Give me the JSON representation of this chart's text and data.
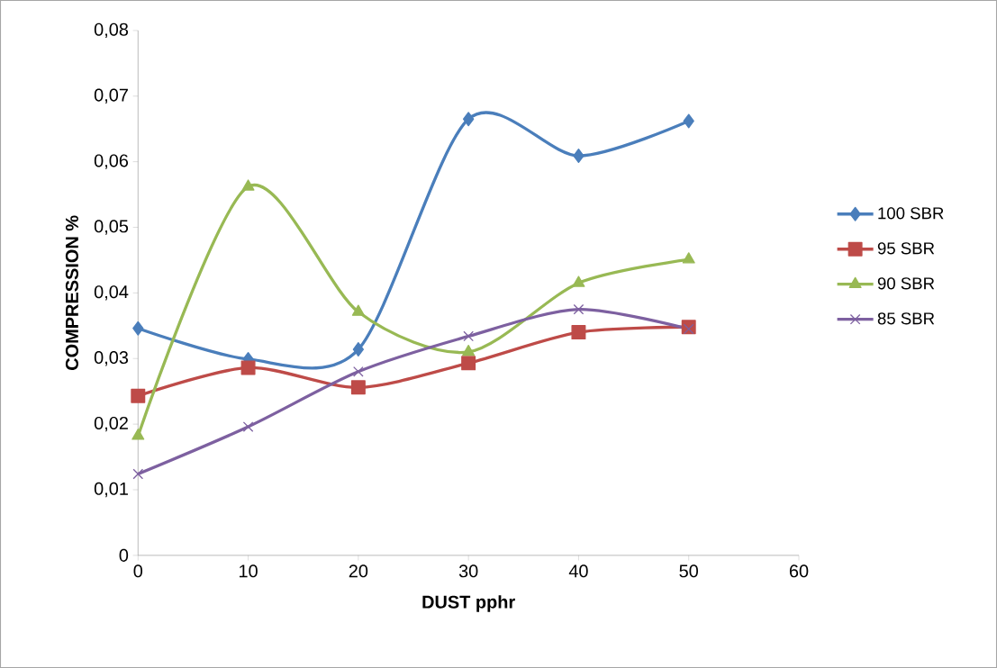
{
  "chart_data": {
    "type": "line",
    "xlabel": "DUST pphr",
    "ylabel": "COMPRESSION %",
    "x": [
      0,
      10,
      20,
      30,
      40,
      50
    ],
    "series": [
      {
        "name": "100 SBR",
        "color": "#4a7ebb",
        "marker": "diamond",
        "values": [
          0.0346,
          0.0299,
          0.0314,
          0.0665,
          0.0609,
          0.0662
        ]
      },
      {
        "name": "95 SBR",
        "color": "#be4b48",
        "marker": "square",
        "values": [
          0.0243,
          0.0286,
          0.0256,
          0.0293,
          0.034,
          0.0348
        ]
      },
      {
        "name": "90 SBR",
        "color": "#98b954",
        "marker": "triangle",
        "values": [
          0.0182,
          0.0562,
          0.0371,
          0.031,
          0.0415,
          0.0451
        ]
      },
      {
        "name": "85 SBR",
        "color": "#7d60a0",
        "marker": "cross",
        "values": [
          0.0124,
          0.0196,
          0.028,
          0.0334,
          0.0375,
          0.0345
        ]
      }
    ],
    "xlim": [
      0,
      60
    ],
    "xticks": [
      0,
      10,
      20,
      30,
      40,
      50,
      60
    ],
    "ylim": [
      0,
      0.08
    ],
    "yticks": [
      0,
      {
        "value": 0.01,
        "label": "0,01"
      },
      {
        "value": 0.02,
        "label": "0,02"
      },
      {
        "value": 0.03,
        "label": "0,03"
      },
      {
        "value": 0.04,
        "label": "0,04"
      },
      {
        "value": 0.05,
        "label": "0,05"
      },
      {
        "value": 0.06,
        "label": "0,06"
      },
      {
        "value": 0.07,
        "label": "0,07"
      },
      {
        "value": 0.08,
        "label": "0,08"
      }
    ],
    "legend": "right",
    "grid": false,
    "line_style": "solid"
  }
}
